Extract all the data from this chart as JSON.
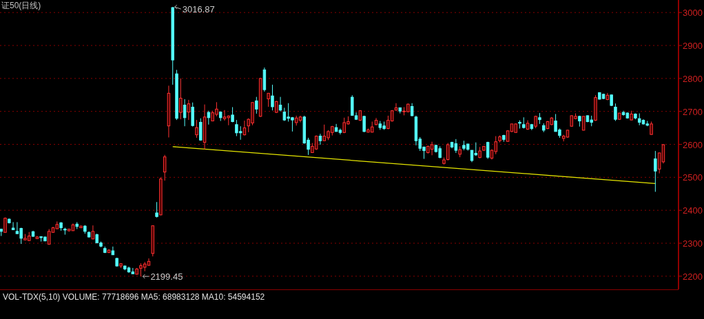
{
  "chart_data": {
    "type": "candlestick",
    "title": "证50(日线)",
    "categories": [
      null,
      null,
      null,
      null,
      null,
      null,
      null,
      null,
      null,
      null,
      null,
      null,
      null,
      null,
      null,
      null,
      null,
      null,
      null,
      null,
      null,
      null,
      null,
      null,
      null,
      null,
      null,
      null,
      null,
      null,
      null,
      null,
      null,
      null,
      null,
      null,
      null,
      null,
      null,
      null,
      null,
      null,
      null,
      null,
      null,
      null,
      null,
      null,
      null,
      null,
      null,
      null,
      null,
      null,
      null,
      null,
      null,
      null,
      null,
      null,
      null,
      null,
      null,
      null,
      null,
      null,
      null,
      null,
      null,
      null,
      null,
      null,
      null,
      null,
      null,
      null,
      null,
      null,
      null,
      null,
      null,
      null,
      null,
      null,
      null,
      null,
      null,
      null,
      null,
      null,
      null,
      null,
      null,
      null,
      null,
      null,
      null,
      null,
      null,
      null,
      null,
      null,
      null,
      null,
      null,
      null,
      null,
      null,
      null,
      null,
      null,
      null,
      null,
      null,
      null,
      null,
      null,
      null,
      null,
      null,
      null,
      null,
      null,
      null,
      null,
      null,
      null,
      null,
      null,
      null,
      null,
      null,
      null,
      null,
      null,
      null,
      null,
      null,
      null,
      null,
      null,
      null,
      null,
      null,
      null,
      null,
      null,
      null,
      null,
      null,
      null,
      null,
      null,
      null,
      null,
      null,
      null,
      null,
      null,
      null,
      null,
      null,
      null,
      null,
      null,
      null,
      null
    ],
    "ohlc": [
      [
        2343,
        2343,
        2322,
        2336
      ],
      [
        2333,
        2378,
        2332,
        2376
      ],
      [
        2373,
        2375,
        2360,
        2362
      ],
      [
        2346,
        2364,
        2340,
        2341
      ],
      [
        2336,
        2364,
        2329,
        2329
      ],
      [
        2345,
        2347,
        2298,
        2315
      ],
      [
        2310,
        2328,
        2310,
        2315
      ],
      [
        2308,
        2334,
        2307,
        2322
      ],
      [
        2335,
        2338,
        2319,
        2321
      ],
      [
        2314,
        2322,
        2313,
        2319
      ],
      [
        2320,
        2321,
        2305,
        2317
      ],
      [
        2319,
        2319,
        2306,
        2307
      ],
      [
        2297,
        2343,
        2296,
        2336
      ],
      [
        2333,
        2350,
        2332,
        2347
      ],
      [
        2344,
        2366,
        2343,
        2357
      ],
      [
        2362,
        2364,
        2338,
        2347
      ],
      [
        2343,
        2347,
        2326,
        2340
      ],
      [
        2338,
        2344,
        2335,
        2343
      ],
      [
        2338,
        2360,
        2338,
        2356
      ],
      [
        2358,
        2364,
        2343,
        2351
      ],
      [
        2347,
        2353,
        2346,
        2352
      ],
      [
        2352,
        2355,
        2329,
        2336
      ],
      [
        2333,
        2336,
        2317,
        2319
      ],
      [
        2313,
        2354,
        2312,
        2336
      ],
      [
        2326,
        2329,
        2300,
        2301
      ],
      [
        2301,
        2305,
        2288,
        2291
      ],
      [
        2284,
        2290,
        2270,
        2272
      ],
      [
        2272,
        2282,
        2270,
        2279
      ],
      [
        2277,
        2290,
        2265,
        2265
      ],
      [
        2254,
        2256,
        2229,
        2231
      ],
      [
        2231,
        2239,
        2225,
        2238
      ],
      [
        2231,
        2232,
        2218,
        2222
      ],
      [
        2225,
        2229,
        2210,
        2213
      ],
      [
        2213,
        2225,
        2206,
        2207
      ],
      [
        2206,
        2225,
        2205,
        2222
      ],
      [
        2224,
        2239,
        2199.45,
        2232
      ],
      [
        2227,
        2243,
        2215,
        2237
      ],
      [
        2233,
        2254,
        2232,
        2245
      ],
      [
        2269,
        2353,
        2260,
        2353
      ],
      [
        2392,
        2425,
        2378,
        2381
      ],
      [
        2386,
        2500,
        2385,
        2495
      ],
      [
        2516,
        2568,
        2490,
        2562
      ],
      [
        2656,
        2778,
        2621,
        2755
      ],
      [
        3015,
        3016.87,
        2781,
        2856
      ],
      [
        2814,
        2826,
        2674,
        2679
      ],
      [
        2697,
        2800,
        2676,
        2740
      ],
      [
        2719,
        2737,
        2655,
        2681
      ],
      [
        2698,
        2735,
        2674,
        2723
      ],
      [
        2713,
        2727,
        2654,
        2657
      ],
      [
        2629,
        2674,
        2620,
        2651
      ],
      [
        2667,
        2679,
        2611,
        2613
      ],
      [
        2606,
        2721,
        2585,
        2683
      ],
      [
        2697,
        2702,
        2660,
        2681
      ],
      [
        2671,
        2702,
        2670,
        2696
      ],
      [
        2691,
        2728,
        2685,
        2707
      ],
      [
        2698,
        2700,
        2671,
        2681
      ],
      [
        2678,
        2704,
        2672,
        2683
      ],
      [
        2681,
        2688,
        2658,
        2686
      ],
      [
        2689,
        2713,
        2667,
        2669
      ],
      [
        2660,
        2674,
        2625,
        2635
      ],
      [
        2639,
        2655,
        2614,
        2635
      ],
      [
        2629,
        2672,
        2627,
        2650
      ],
      [
        2656,
        2679,
        2637,
        2676
      ],
      [
        2665,
        2728,
        2658,
        2727
      ],
      [
        2732,
        2744,
        2693,
        2707
      ],
      [
        2685,
        2802,
        2683,
        2800
      ],
      [
        2826,
        2833,
        2760,
        2766
      ],
      [
        2738,
        2756,
        2714,
        2755
      ],
      [
        2747,
        2781,
        2703,
        2714
      ],
      [
        2697,
        2732,
        2695,
        2730
      ],
      [
        2719,
        2744,
        2700,
        2704
      ],
      [
        2698,
        2711,
        2671,
        2674
      ],
      [
        2683,
        2725,
        2669,
        2679
      ],
      [
        2681,
        2683,
        2639,
        2674
      ],
      [
        2666,
        2687,
        2657,
        2680
      ],
      [
        2673,
        2687,
        2667,
        2683
      ],
      [
        2683,
        2687,
        2602,
        2604
      ],
      [
        2613,
        2620,
        2568,
        2585
      ],
      [
        2575,
        2604,
        2574,
        2594
      ],
      [
        2586,
        2627,
        2583,
        2625
      ],
      [
        2625,
        2632,
        2599,
        2611
      ],
      [
        2611,
        2660,
        2611,
        2625
      ],
      [
        2620,
        2643,
        2613,
        2639
      ],
      [
        2636,
        2656,
        2627,
        2654
      ],
      [
        2651,
        2662,
        2639,
        2639
      ],
      [
        2643,
        2648,
        2630,
        2636
      ],
      [
        2636,
        2681,
        2634,
        2666
      ],
      [
        2662,
        2685,
        2660,
        2669
      ],
      [
        2743,
        2749,
        2687,
        2688
      ],
      [
        2687,
        2697,
        2674,
        2676
      ],
      [
        2673,
        2704,
        2671,
        2702
      ],
      [
        2685,
        2687,
        2637,
        2639
      ],
      [
        2637,
        2648,
        2636,
        2644
      ],
      [
        2637,
        2669,
        2636,
        2653
      ],
      [
        2660,
        2680,
        2658,
        2673
      ],
      [
        2662,
        2671,
        2644,
        2651
      ],
      [
        2656,
        2669,
        2644,
        2648
      ],
      [
        2648,
        2687,
        2646,
        2673
      ],
      [
        2671,
        2704,
        2669,
        2702
      ],
      [
        2704,
        2725,
        2702,
        2711
      ],
      [
        2711,
        2711,
        2694,
        2701
      ],
      [
        2700,
        2713,
        2688,
        2701
      ],
      [
        2699,
        2724,
        2697,
        2722
      ],
      [
        2715,
        2725,
        2685,
        2687
      ],
      [
        2683,
        2687,
        2597,
        2611
      ],
      [
        2616,
        2622,
        2580,
        2588
      ],
      [
        2592,
        2592,
        2556,
        2581
      ],
      [
        2575,
        2596,
        2572,
        2594
      ],
      [
        2585,
        2608,
        2567,
        2599
      ],
      [
        2597,
        2599,
        2575,
        2578
      ],
      [
        2587,
        2594,
        2558,
        2560
      ],
      [
        2542,
        2560,
        2539,
        2553
      ],
      [
        2554,
        2604,
        2551,
        2599
      ],
      [
        2606,
        2608,
        2588,
        2592
      ],
      [
        2602,
        2616,
        2574,
        2582
      ],
      [
        2570,
        2594,
        2561,
        2584
      ],
      [
        2597,
        2611,
        2582,
        2588
      ],
      [
        2601,
        2602,
        2581,
        2585
      ],
      [
        2582,
        2582,
        2546,
        2551
      ],
      [
        2573,
        2606,
        2565,
        2568
      ],
      [
        2560,
        2592,
        2558,
        2580
      ],
      [
        2582,
        2594,
        2580,
        2594
      ],
      [
        2606,
        2608,
        2556,
        2561
      ],
      [
        2558,
        2585,
        2554,
        2582
      ],
      [
        2578,
        2625,
        2570,
        2608
      ],
      [
        2611,
        2627,
        2606,
        2623
      ],
      [
        2627,
        2629,
        2608,
        2615
      ],
      [
        2609,
        2643,
        2608,
        2641
      ],
      [
        2639,
        2662,
        2637,
        2662
      ],
      [
        2636,
        2663,
        2636,
        2662
      ],
      [
        2667,
        2673,
        2648,
        2664
      ],
      [
        2660,
        2682,
        2648,
        2651
      ],
      [
        2646,
        2673,
        2644,
        2664
      ],
      [
        2660,
        2662,
        2643,
        2648
      ],
      [
        2655,
        2687,
        2649,
        2685
      ],
      [
        2681,
        2695,
        2662,
        2675
      ],
      [
        2657,
        2664,
        2637,
        2643
      ],
      [
        2648,
        2671,
        2646,
        2669
      ],
      [
        2660,
        2683,
        2658,
        2680
      ],
      [
        2671,
        2692,
        2639,
        2639
      ],
      [
        2644,
        2648,
        2620,
        2627
      ],
      [
        2618,
        2629,
        2609,
        2625
      ],
      [
        2622,
        2644,
        2620,
        2643
      ],
      [
        2655,
        2688,
        2654,
        2687
      ],
      [
        2678,
        2694,
        2676,
        2685
      ],
      [
        2685,
        2687,
        2654,
        2671
      ],
      [
        2643,
        2685,
        2642,
        2685
      ],
      [
        2687,
        2688,
        2667,
        2669
      ],
      [
        2674,
        2687,
        2655,
        2667
      ],
      [
        2673,
        2749,
        2671,
        2742
      ],
      [
        2757,
        2758,
        2736,
        2737
      ],
      [
        2752,
        2754,
        2737,
        2739
      ],
      [
        2736,
        2756,
        2734,
        2749
      ],
      [
        2750,
        2751,
        2716,
        2718
      ],
      [
        2713,
        2724,
        2671,
        2676
      ],
      [
        2676,
        2695,
        2674,
        2695
      ],
      [
        2697,
        2702,
        2687,
        2690
      ],
      [
        2695,
        2697,
        2678,
        2680
      ],
      [
        2674,
        2702,
        2673,
        2692
      ],
      [
        2692,
        2694,
        2676,
        2680
      ],
      [
        2678,
        2694,
        2658,
        2667
      ],
      [
        2673,
        2676,
        2660,
        2662
      ],
      [
        2662,
        2671,
        2655,
        2658
      ],
      [
        2630,
        2669,
        2629,
        2662
      ],
      [
        2556,
        2580,
        2456,
        2519
      ],
      [
        2525,
        2575,
        2512,
        2574
      ],
      [
        2547,
        2601,
        2542,
        2599
      ]
    ],
    "series": [
      {
        "type": "line",
        "color": "#e6e600",
        "values": [
          null,
          null,
          null,
          null,
          null,
          null,
          null,
          null,
          null,
          null,
          null,
          null,
          null,
          null,
          null,
          null,
          null,
          null,
          null,
          null,
          null,
          null,
          null,
          null,
          null,
          null,
          null,
          null,
          null,
          null,
          null,
          null,
          null,
          null,
          null,
          null,
          null,
          null,
          null,
          null,
          null,
          null,
          null,
          2593,
          null,
          null,
          null,
          null,
          null,
          null,
          null,
          null,
          null,
          null,
          null,
          null,
          null,
          null,
          null,
          null,
          null,
          null,
          null,
          null,
          null,
          null,
          null,
          null,
          null,
          null,
          null,
          null,
          null,
          null,
          null,
          null,
          null,
          null,
          null,
          null,
          null,
          null,
          null,
          null,
          null,
          null,
          null,
          null,
          null,
          null,
          null,
          null,
          null,
          null,
          null,
          null,
          null,
          null,
          null,
          null,
          null,
          null,
          null,
          null,
          null,
          null,
          null,
          null,
          null,
          null,
          null,
          null,
          null,
          null,
          null,
          null,
          null,
          null,
          null,
          null,
          null,
          null,
          null,
          null,
          null,
          null,
          null,
          null,
          null,
          null,
          null,
          null,
          null,
          null,
          null,
          null,
          null,
          null,
          null,
          null,
          null,
          null,
          null,
          null,
          null,
          null,
          null,
          null,
          null,
          null,
          null,
          null,
          null,
          null,
          null,
          null,
          null,
          null,
          null,
          null,
          null,
          null,
          null,
          null,
          2481,
          null,
          null
        ]
      }
    ],
    "ylim": [
      2160,
      3038
    ],
    "yticks": [
      2200,
      2300,
      2400,
      2500,
      2600,
      2700,
      2800,
      2900,
      3000
    ],
    "grid": "y",
    "annotations": [
      "3016.87",
      "2199.45",
      "VOL-TDX(5,10) VOLUME: 77718696 MA5: 68983128 MA10: 54594152"
    ]
  }
}
